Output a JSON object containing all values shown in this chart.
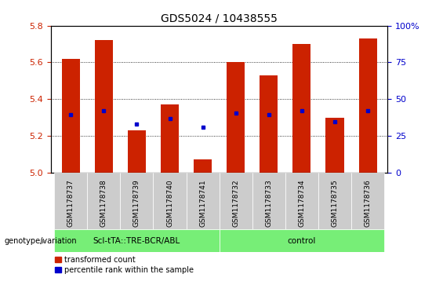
{
  "title": "GDS5024 / 10438555",
  "samples": [
    "GSM1178737",
    "GSM1178738",
    "GSM1178739",
    "GSM1178740",
    "GSM1178741",
    "GSM1178732",
    "GSM1178733",
    "GSM1178734",
    "GSM1178735",
    "GSM1178736"
  ],
  "transformed_count": [
    5.62,
    5.72,
    5.23,
    5.37,
    5.07,
    5.6,
    5.53,
    5.7,
    5.3,
    5.73
  ],
  "percentile_rank": [
    5.315,
    5.335,
    5.265,
    5.295,
    5.245,
    5.325,
    5.315,
    5.335,
    5.275,
    5.335
  ],
  "ylim": [
    5.0,
    5.8
  ],
  "yticks": [
    5.0,
    5.2,
    5.4,
    5.6,
    5.8
  ],
  "right_yticks": [
    0,
    25,
    50,
    75,
    100
  ],
  "bar_color": "#cc2200",
  "dot_color": "#0000cc",
  "bg_color": "#ffffff",
  "group1_label": "ScI-tTA::TRE-BCR/ABL",
  "group2_label": "control",
  "group1_indices": [
    0,
    1,
    2,
    3,
    4
  ],
  "group2_indices": [
    5,
    6,
    7,
    8,
    9
  ],
  "group_bg_color": "#77ee77",
  "sample_bg_color": "#cccccc",
  "genotype_label": "genotype/variation",
  "legend_items": [
    "transformed count",
    "percentile rank within the sample"
  ],
  "ylabel_color": "#cc2200",
  "right_ylabel_color": "#0000cc",
  "title_fontsize": 10,
  "tick_fontsize": 8,
  "bar_width": 0.55
}
